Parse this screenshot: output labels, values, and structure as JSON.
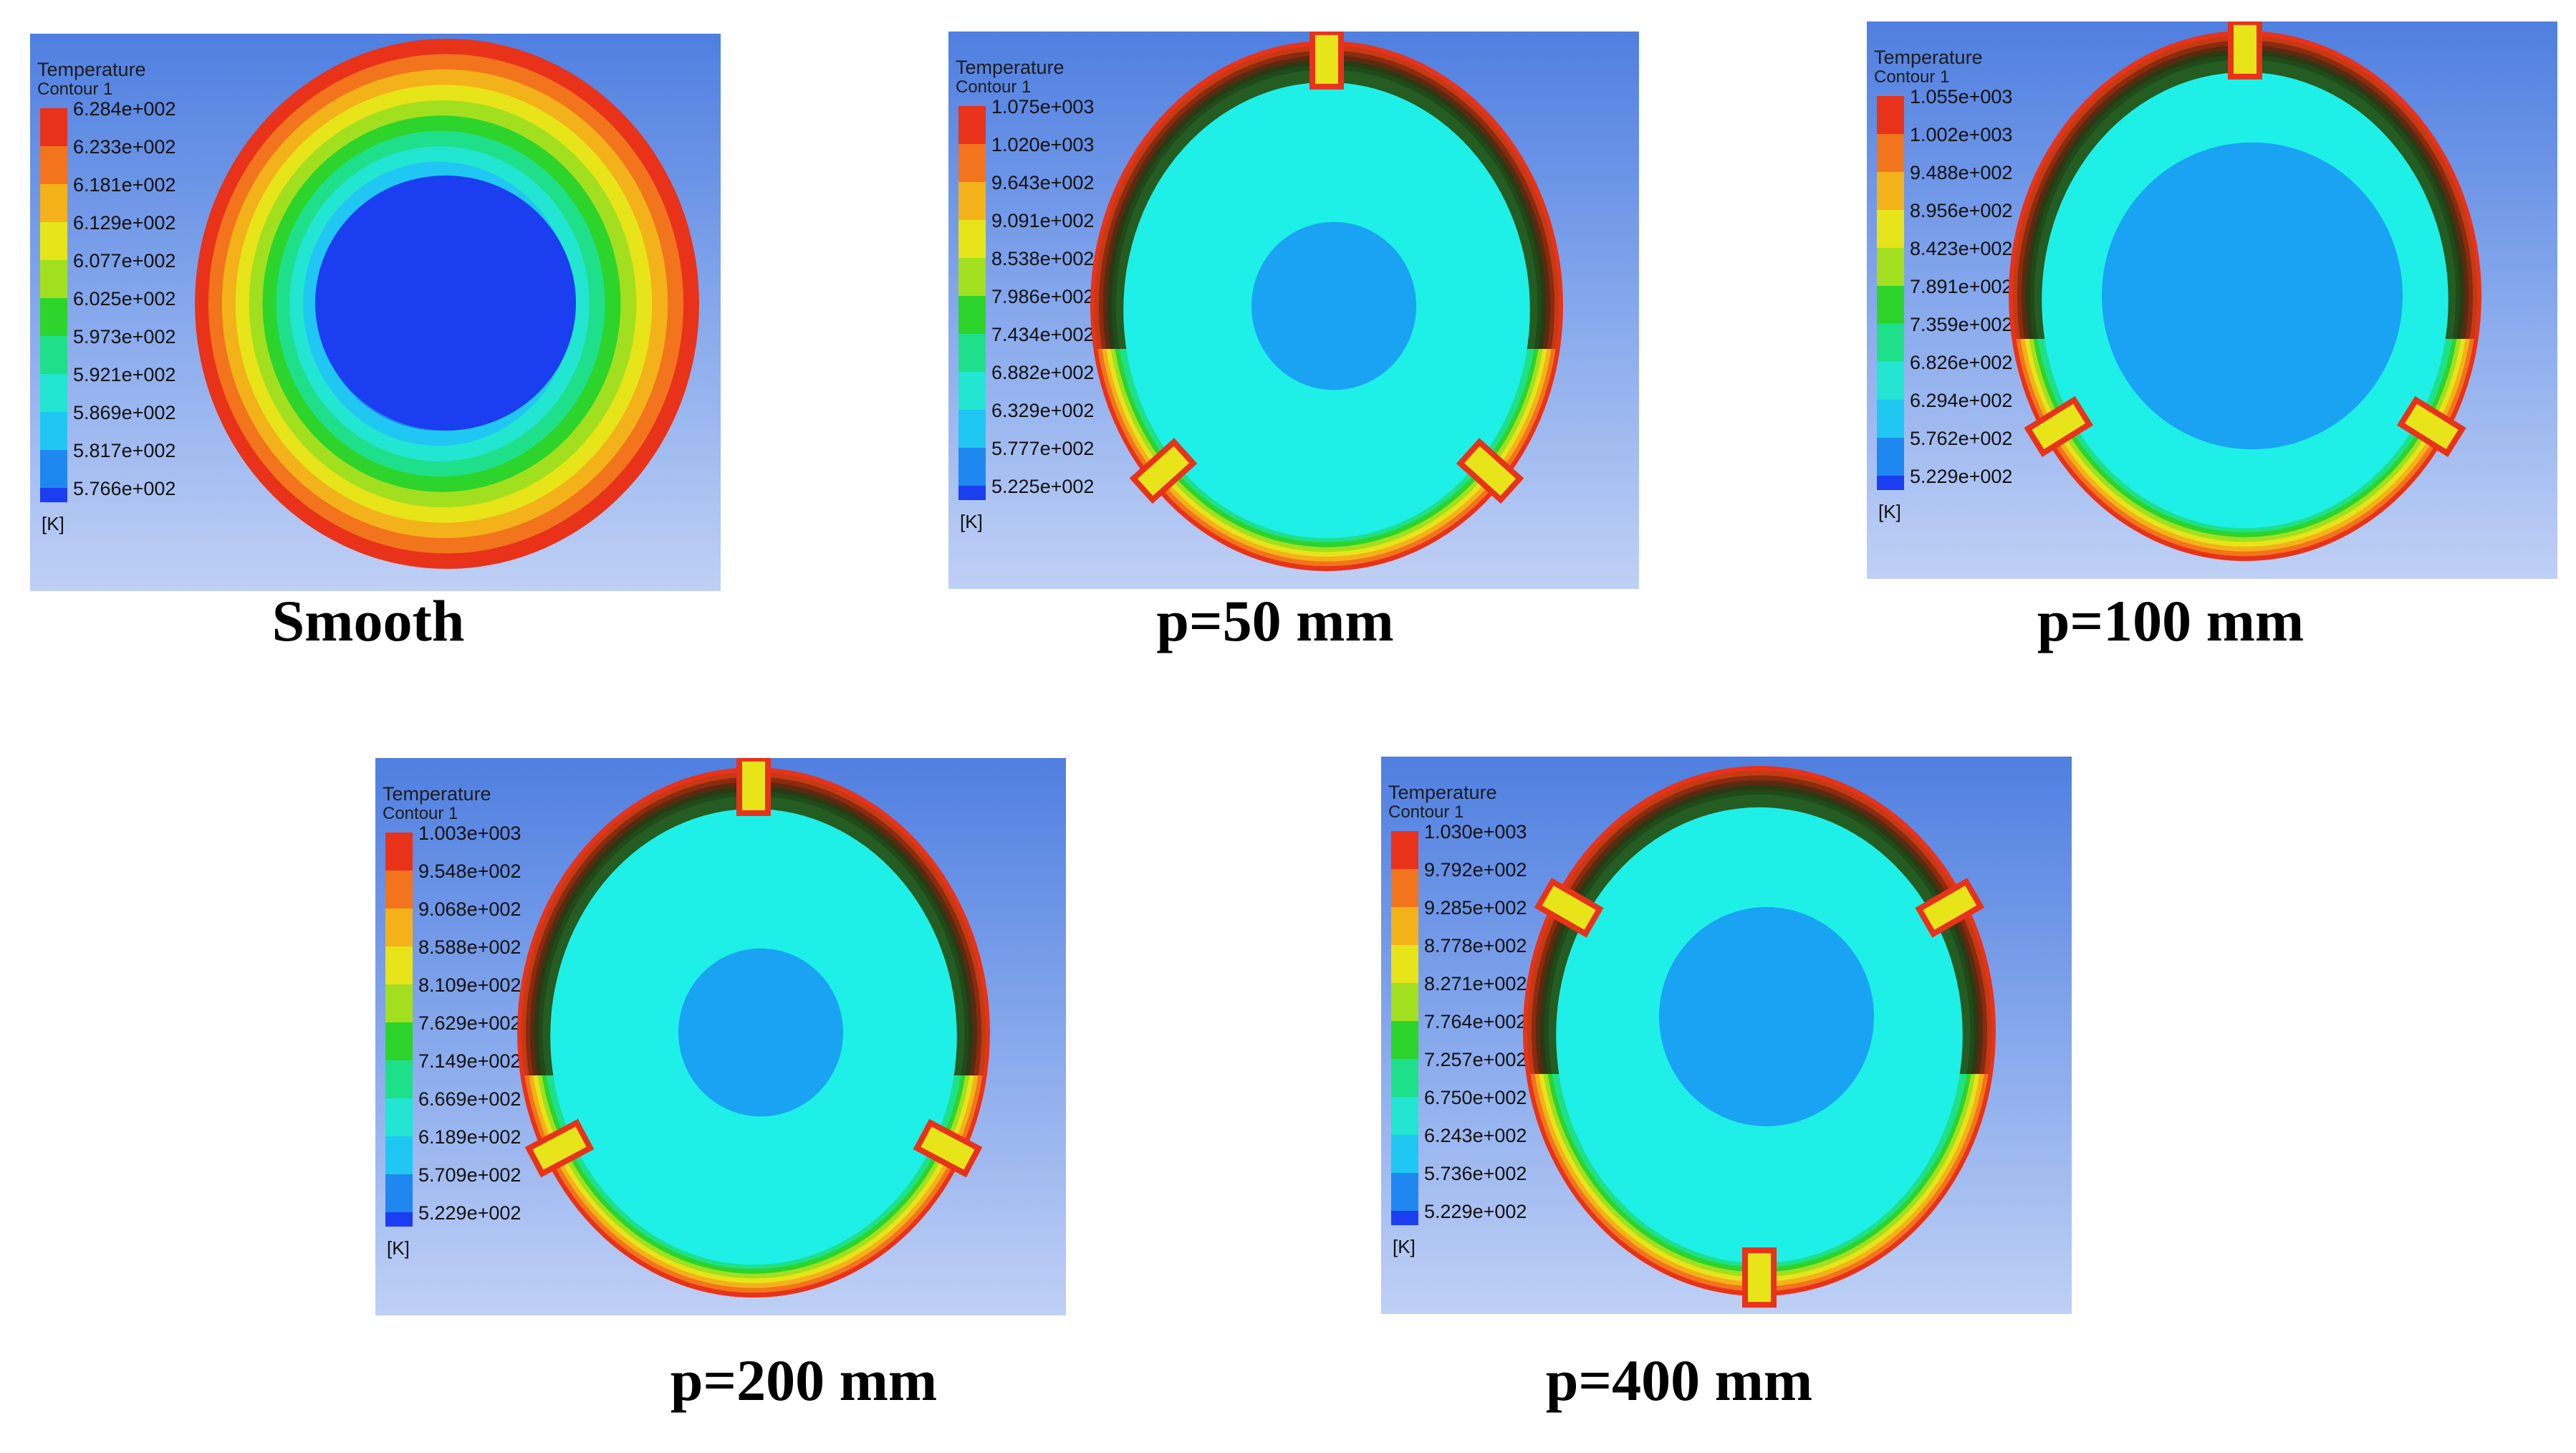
{
  "panels": [
    {
      "id": "smooth",
      "title_line1": "Temperature",
      "title_line2": "Contour 1",
      "unit": "[K]",
      "caption": "Smooth",
      "legend": [
        "6.284e+002",
        "6.233e+002",
        "6.181e+002",
        "6.129e+002",
        "6.077e+002",
        "6.025e+002",
        "5.973e+002",
        "5.921e+002",
        "5.869e+002",
        "5.817e+002",
        "5.766e+002"
      ],
      "style": "smooth"
    },
    {
      "id": "p50",
      "title_line1": "Temperature",
      "title_line2": "Contour 1",
      "unit": "[K]",
      "caption": "p=50 mm",
      "legend": [
        "1.075e+003",
        "1.020e+003",
        "9.643e+002",
        "9.091e+002",
        "8.538e+002",
        "7.986e+002",
        "7.434e+002",
        "6.882e+002",
        "6.329e+002",
        "5.777e+002",
        "5.225e+002"
      ],
      "style": "ring",
      "rib_angles": [
        0,
        132,
        228
      ]
    },
    {
      "id": "p100",
      "title_line1": "Temperature",
      "title_line2": "Contour 1",
      "unit": "[K]",
      "caption": "p=100 mm",
      "legend": [
        "1.055e+003",
        "1.002e+003",
        "9.488e+002",
        "8.956e+002",
        "8.423e+002",
        "7.891e+002",
        "7.359e+002",
        "6.826e+002",
        "6.294e+002",
        "5.762e+002",
        "5.229e+002"
      ],
      "style": "ring",
      "rib_angles": [
        0,
        122,
        238
      ]
    },
    {
      "id": "p200",
      "title_line1": "Temperature",
      "title_line2": "Contour 1",
      "unit": "[K]",
      "caption": "p=200 mm",
      "legend": [
        "1.003e+003",
        "9.548e+002",
        "9.068e+002",
        "8.588e+002",
        "8.109e+002",
        "7.629e+002",
        "7.149e+002",
        "6.669e+002",
        "6.189e+002",
        "5.709e+002",
        "5.229e+002"
      ],
      "style": "ring",
      "rib_angles": [
        0,
        118,
        242
      ]
    },
    {
      "id": "p400",
      "title_line1": "Temperature",
      "title_line2": "Contour 1",
      "unit": "[K]",
      "caption": "p=400 mm",
      "legend": [
        "1.030e+003",
        "9.792e+002",
        "9.285e+002",
        "8.778e+002",
        "8.271e+002",
        "7.764e+002",
        "7.257e+002",
        "6.750e+002",
        "6.243e+002",
        "5.736e+002",
        "5.229e+002"
      ],
      "style": "ring",
      "rib_angles": [
        60,
        180,
        300
      ]
    }
  ],
  "legend_colors": [
    "#e8321a",
    "#f2741c",
    "#f4b21a",
    "#e8e41a",
    "#a2e01f",
    "#2dd42c",
    "#1fe08a",
    "#22e6d2",
    "#1fc7f2",
    "#1e88f0",
    "#1a3ef0"
  ]
}
